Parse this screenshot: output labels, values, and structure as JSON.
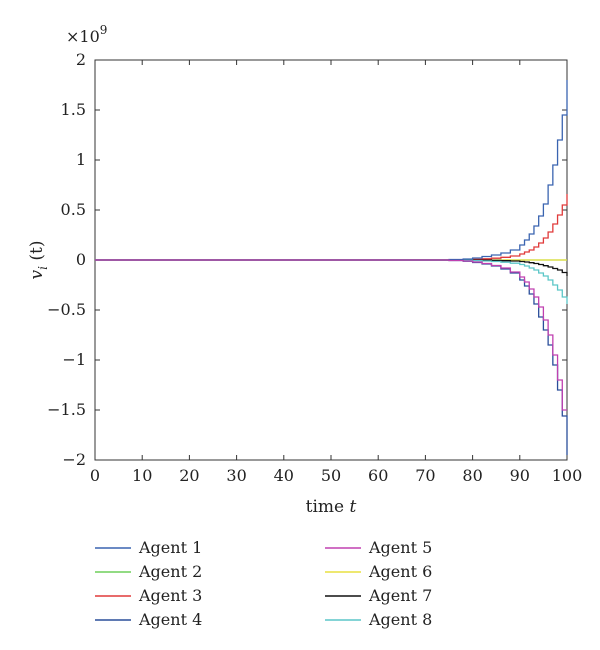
{
  "chart_data": {
    "type": "line",
    "step": true,
    "xlabel": "time t",
    "ylabel": "v_i (t)",
    "y_multiplier_label": "×10",
    "y_multiplier_exponent": "9",
    "y_scale_factor": 1000000000,
    "xlim": [
      0,
      100
    ],
    "ylim": [
      -2,
      2
    ],
    "x_ticks": [
      0,
      10,
      20,
      30,
      40,
      50,
      60,
      70,
      80,
      90,
      100
    ],
    "x_tick_labels": [
      "0",
      "10",
      "20",
      "30",
      "40",
      "50",
      "60",
      "70",
      "80",
      "90",
      "100"
    ],
    "y_ticks": [
      -2,
      -1.5,
      -1,
      -0.5,
      0,
      0.5,
      1,
      1.5,
      2
    ],
    "y_tick_labels": [
      "−2",
      "−1.5",
      "−1",
      "−0.5",
      "0",
      "0.5",
      "1",
      "1.5",
      "2"
    ],
    "grid": false,
    "legend_position": "below plot, two columns",
    "x": [
      0,
      70,
      75,
      78,
      80,
      82,
      84,
      86,
      88,
      90,
      91,
      92,
      93,
      94,
      95,
      96,
      97,
      98,
      99,
      100
    ],
    "series": [
      {
        "name": "Agent 1",
        "color": "#3a64b0",
        "values": [
          0,
          0,
          0.005,
          0.01,
          0.02,
          0.035,
          0.05,
          0.07,
          0.1,
          0.15,
          0.2,
          0.26,
          0.34,
          0.44,
          0.56,
          0.75,
          0.95,
          1.2,
          1.45,
          1.8
        ]
      },
      {
        "name": "Agent 2",
        "color": "#6fcf5a",
        "values": [
          0,
          0,
          0,
          0,
          0,
          0,
          0,
          0,
          0,
          0,
          0,
          0,
          0,
          0,
          0,
          0,
          0,
          0,
          0,
          0
        ]
      },
      {
        "name": "Agent 3",
        "color": "#e03a3a",
        "values": [
          0,
          0,
          0.002,
          0.004,
          0.007,
          0.012,
          0.018,
          0.027,
          0.04,
          0.06,
          0.08,
          0.1,
          0.13,
          0.17,
          0.22,
          0.28,
          0.36,
          0.45,
          0.55,
          0.66
        ]
      },
      {
        "name": "Agent 4",
        "color": "#2a4e9a",
        "values": [
          0,
          0,
          -0.005,
          -0.012,
          -0.025,
          -0.04,
          -0.06,
          -0.09,
          -0.13,
          -0.2,
          -0.26,
          -0.34,
          -0.44,
          -0.57,
          -0.7,
          -0.85,
          -1.05,
          -1.3,
          -1.56,
          -1.95
        ]
      },
      {
        "name": "Agent 5",
        "color": "#c040b0",
        "values": [
          0,
          0,
          -0.005,
          -0.01,
          -0.02,
          -0.035,
          -0.055,
          -0.08,
          -0.12,
          -0.17,
          -0.22,
          -0.29,
          -0.37,
          -0.47,
          -0.6,
          -0.75,
          -0.95,
          -1.2,
          -1.5,
          -1.5
        ]
      },
      {
        "name": "Agent 6",
        "color": "#e8e040",
        "values": [
          0,
          0,
          0,
          0,
          0,
          0,
          0,
          0,
          0,
          0,
          0,
          0,
          0,
          0,
          0,
          0,
          0,
          0,
          0,
          0
        ]
      },
      {
        "name": "Agent 7",
        "color": "#111111",
        "values": [
          0,
          0,
          0,
          0,
          -0.001,
          -0.002,
          -0.004,
          -0.007,
          -0.01,
          -0.015,
          -0.02,
          -0.027,
          -0.035,
          -0.045,
          -0.057,
          -0.07,
          -0.085,
          -0.1,
          -0.125,
          -0.16
        ]
      },
      {
        "name": "Agent 8",
        "color": "#5cc6c8",
        "values": [
          0,
          0,
          -0.001,
          -0.003,
          -0.006,
          -0.01,
          -0.015,
          -0.022,
          -0.032,
          -0.045,
          -0.06,
          -0.08,
          -0.1,
          -0.13,
          -0.16,
          -0.2,
          -0.25,
          -0.3,
          -0.37,
          -0.44
        ]
      }
    ]
  }
}
